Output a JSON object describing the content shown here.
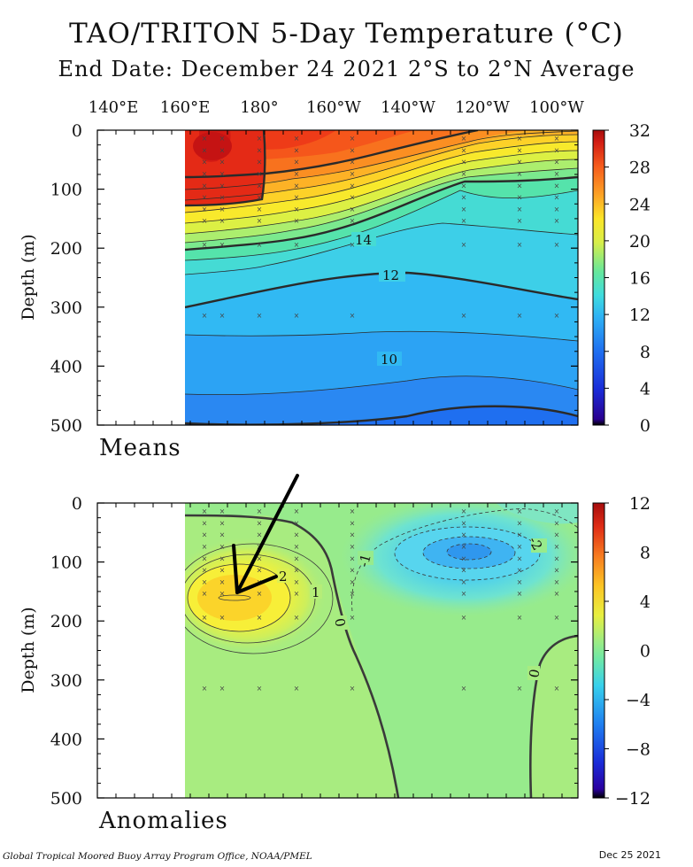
{
  "title": "TAO/TRITON 5-Day Temperature (°C)",
  "subtitle": "End Date: December 24 2021   2°S to 2°N Average",
  "footer_left": "Global Tropical Moored Buoy Array Program Office, NOAA/PMEL",
  "footer_right": "Dec 25 2021",
  "x_tick_labels": [
    "140°E",
    "160°E",
    "180°",
    "160°W",
    "140°W",
    "120°W",
    "100°W"
  ],
  "y_axis_label": "Depth (m)",
  "chart_data": [
    {
      "type": "heatmap",
      "panel_label": "Means",
      "ylabel": "Depth (m)",
      "y_ticks": [
        0,
        100,
        200,
        300,
        400,
        500
      ],
      "ylim": [
        500,
        0
      ],
      "colorbar": {
        "ticks": [
          32,
          28,
          24,
          20,
          16,
          12,
          8,
          4,
          0
        ],
        "range": [
          0,
          32
        ]
      },
      "contour_labels": [
        {
          "text": "14",
          "value": 14
        },
        {
          "text": "12",
          "value": 12
        },
        {
          "text": "10",
          "value": 10
        }
      ],
      "data_start_lon": "160°E",
      "thermocline_20C_depth_m": [
        {
          "lon": "160°E",
          "depth": 200
        },
        {
          "lon": "180°",
          "depth": 195
        },
        {
          "lon": "160°W",
          "depth": 175
        },
        {
          "lon": "140°W",
          "depth": 130
        },
        {
          "lon": "120°W",
          "depth": 75
        },
        {
          "lon": "100°W",
          "depth": 40
        }
      ]
    },
    {
      "type": "heatmap",
      "panel_label": "Anomalies",
      "ylabel": "Depth (m)",
      "y_ticks": [
        0,
        100,
        200,
        300,
        400,
        500
      ],
      "ylim": [
        500,
        0
      ],
      "colorbar": {
        "ticks": [
          12,
          8,
          4,
          0,
          -4,
          -8,
          -12
        ],
        "range": [
          -12,
          12
        ]
      },
      "contour_labels": [
        {
          "text": "2",
          "value": 2
        },
        {
          "text": "1",
          "value": 1
        },
        {
          "text": "0",
          "value": 0
        },
        {
          "text": "-1",
          "value": -1
        },
        {
          "text": "-2",
          "value": -2
        },
        {
          "text": "0",
          "value": 0
        }
      ],
      "warm_anomaly_center": {
        "lon": "175°E",
        "depth": 160,
        "value": 5
      },
      "cold_anomaly_center": {
        "lon": "120°W",
        "depth": 85,
        "value": -4
      }
    }
  ],
  "colors": {
    "background": "#ffffff",
    "axis": "#000000",
    "annotation_arrow": "#000000"
  }
}
